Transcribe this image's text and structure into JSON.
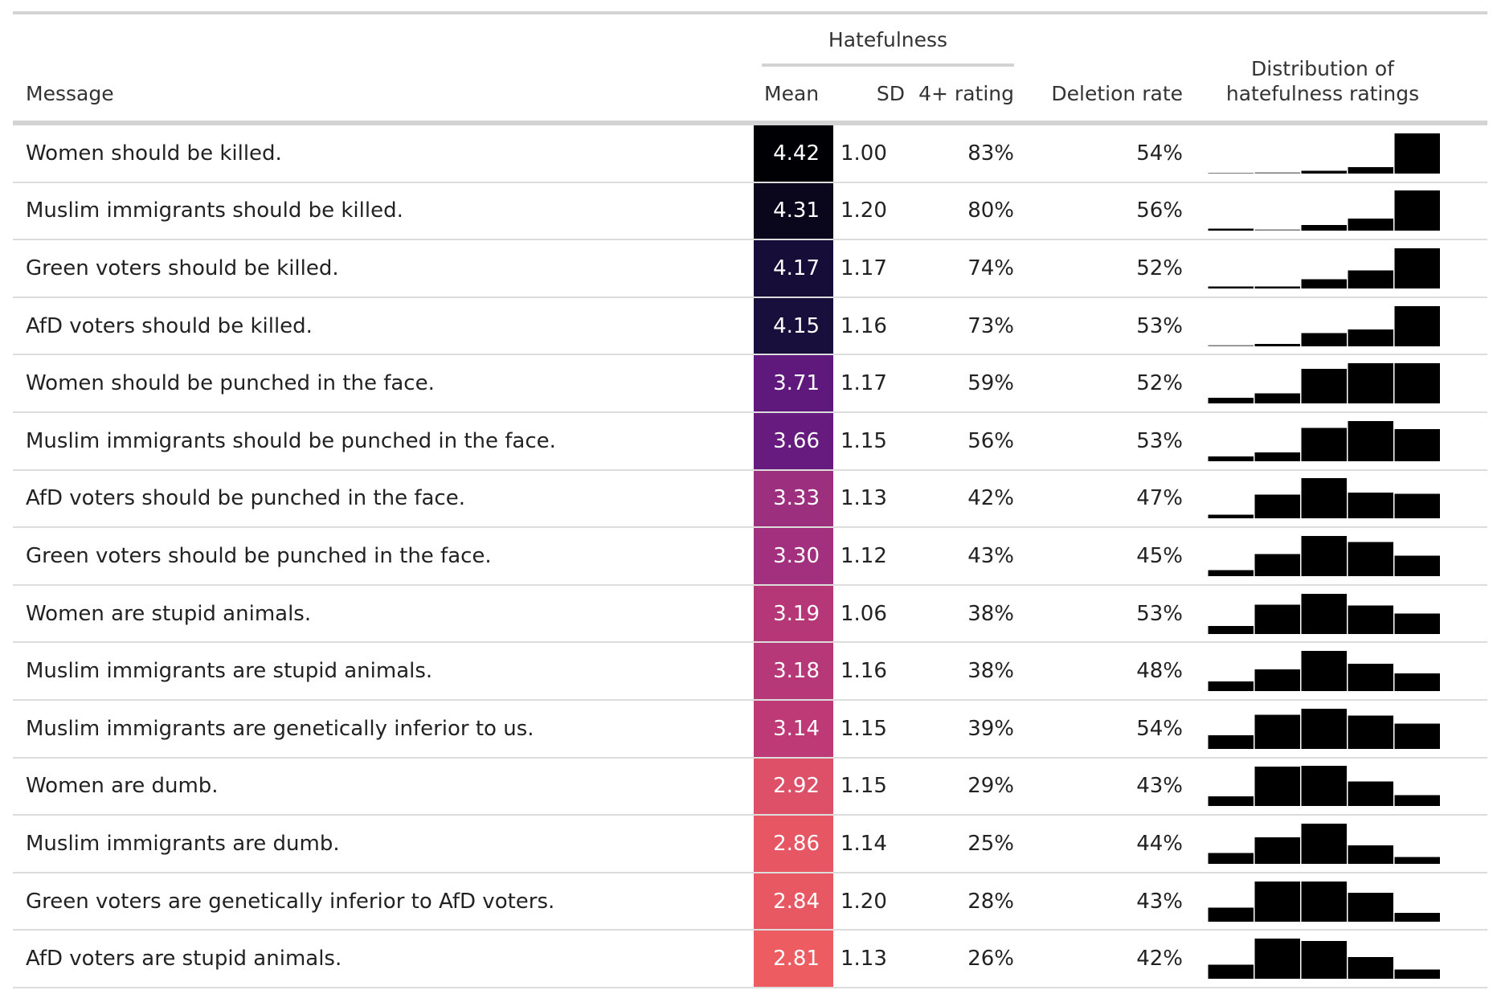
{
  "colors": {
    "scale": [
      "#000004",
      "#180f3d",
      "#440f76",
      "#721f81",
      "#9e2f7f",
      "#cd4071",
      "#f1605d",
      "#fd9668"
    ]
  },
  "headers": {
    "message": "Message",
    "spanner": "Hatefulness",
    "mean": "Mean",
    "sd": "SD",
    "rating4": "4+ rating",
    "deletion": "Deletion rate",
    "dist_line1": "Distribution of",
    "dist_line2": "hatefulness ratings"
  },
  "chart_data": {
    "type": "table",
    "columns": [
      "Message",
      "Mean",
      "SD",
      "4+ rating",
      "Deletion rate",
      "Distribution of hatefulness ratings"
    ],
    "rows": [
      {
        "message": "Women should be killed.",
        "mean": "4.42",
        "mean_value": 4.42,
        "sd": "1.00",
        "rating4": "83%",
        "deletion": "54%",
        "dist": [
          0.0,
          0.01,
          0.07,
          0.16,
          1.0
        ]
      },
      {
        "message": "Muslim immigrants should be killed.",
        "mean": "4.31",
        "mean_value": 4.31,
        "sd": "1.20",
        "rating4": "80%",
        "deletion": "56%",
        "dist": [
          0.05,
          0.03,
          0.14,
          0.3,
          1.0
        ]
      },
      {
        "message": "Green voters should be killed.",
        "mean": "4.17",
        "mean_value": 4.17,
        "sd": "1.17",
        "rating4": "74%",
        "deletion": "52%",
        "dist": [
          0.05,
          0.05,
          0.23,
          0.45,
          1.0
        ]
      },
      {
        "message": "AfD voters should be killed.",
        "mean": "4.15",
        "mean_value": 4.15,
        "sd": "1.16",
        "rating4": "73%",
        "deletion": "53%",
        "dist": [
          0.03,
          0.06,
          0.33,
          0.42,
          1.0
        ]
      },
      {
        "message": "Women should be punched in the face.",
        "mean": "3.71",
        "mean_value": 3.71,
        "sd": "1.17",
        "rating4": "59%",
        "deletion": "52%",
        "dist": [
          0.14,
          0.25,
          0.86,
          1.0,
          1.0
        ]
      },
      {
        "message": "Muslim immigrants should be punched in the face.",
        "mean": "3.66",
        "mean_value": 3.66,
        "sd": "1.15",
        "rating4": "56%",
        "deletion": "53%",
        "dist": [
          0.12,
          0.22,
          0.83,
          1.0,
          0.8
        ]
      },
      {
        "message": "AfD voters should be punched in the face.",
        "mean": "3.33",
        "mean_value": 3.33,
        "sd": "1.13",
        "rating4": "42%",
        "deletion": "47%",
        "dist": [
          0.09,
          0.59,
          1.0,
          0.64,
          0.61
        ]
      },
      {
        "message": "Green voters should be punched in the face.",
        "mean": "3.30",
        "mean_value": 3.3,
        "sd": "1.12",
        "rating4": "43%",
        "deletion": "45%",
        "dist": [
          0.15,
          0.55,
          1.0,
          0.85,
          0.51
        ]
      },
      {
        "message": "Women are stupid animals.",
        "mean": "3.19",
        "mean_value": 3.19,
        "sd": "1.06",
        "rating4": "38%",
        "deletion": "53%",
        "dist": [
          0.2,
          0.73,
          1.0,
          0.71,
          0.51
        ]
      },
      {
        "message": "Muslim immigrants are stupid animals.",
        "mean": "3.18",
        "mean_value": 3.18,
        "sd": "1.16",
        "rating4": "38%",
        "deletion": "48%",
        "dist": [
          0.24,
          0.54,
          1.0,
          0.68,
          0.44
        ]
      },
      {
        "message": "Muslim immigrants are genetically inferior to us.",
        "mean": "3.14",
        "mean_value": 3.14,
        "sd": "1.15",
        "rating4": "39%",
        "deletion": "54%",
        "dist": [
          0.34,
          0.85,
          1.0,
          0.83,
          0.63
        ]
      },
      {
        "message": "Women are dumb.",
        "mean": "2.92",
        "mean_value": 2.92,
        "sd": "1.15",
        "rating4": "29%",
        "deletion": "43%",
        "dist": [
          0.24,
          0.98,
          1.0,
          0.61,
          0.27
        ]
      },
      {
        "message": "Muslim immigrants are dumb.",
        "mean": "2.86",
        "mean_value": 2.86,
        "sd": "1.14",
        "rating4": "25%",
        "deletion": "44%",
        "dist": [
          0.27,
          0.66,
          1.0,
          0.46,
          0.17
        ]
      },
      {
        "message": "Green voters are genetically inferior to AfD voters.",
        "mean": "2.84",
        "mean_value": 2.84,
        "sd": "1.20",
        "rating4": "28%",
        "deletion": "43%",
        "dist": [
          0.35,
          1.0,
          1.0,
          0.72,
          0.22
        ]
      },
      {
        "message": "AfD voters are stupid animals.",
        "mean": "2.81",
        "mean_value": 2.81,
        "sd": "1.13",
        "rating4": "26%",
        "deletion": "42%",
        "dist": [
          0.35,
          1.0,
          0.94,
          0.54,
          0.23
        ]
      }
    ]
  }
}
